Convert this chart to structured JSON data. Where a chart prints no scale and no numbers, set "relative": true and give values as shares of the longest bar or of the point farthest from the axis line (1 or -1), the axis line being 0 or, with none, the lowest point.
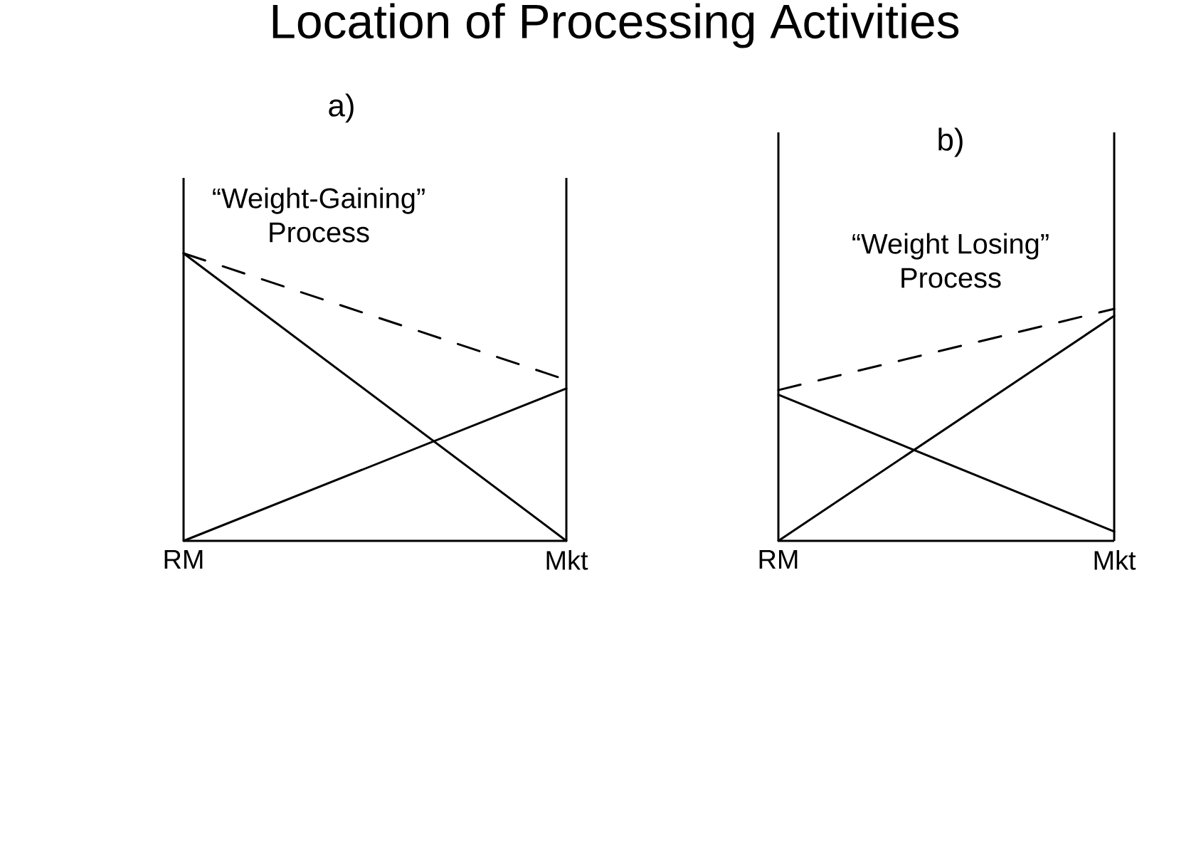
{
  "chart_data": [
    {
      "type": "line",
      "title": "Location of Processing Activities",
      "subtitle": "a)",
      "annotations": [
        "“Weight-Gaining” Process"
      ],
      "categories": [
        "RM",
        "Mkt"
      ],
      "relative": true,
      "tick_labels": "x",
      "marker": "none",
      "series": [
        {
          "color": "#000000",
          "line_style": "solid",
          "values": [
            1,
            0
          ]
        },
        {
          "color": "#000000",
          "line_style": "solid",
          "values": [
            0,
            0.53
          ]
        },
        {
          "color": "#000000",
          "line_style": "dashed",
          "values": [
            1,
            0.56
          ]
        }
      ]
    },
    {
      "type": "line",
      "subtitle": "b)",
      "annotations": [
        "“Weight Losing” Process"
      ],
      "categories": [
        "RM",
        "Mkt"
      ],
      "relative": true,
      "tick_labels": "x",
      "marker": "none",
      "series": [
        {
          "color": "#000000",
          "line_style": "solid",
          "values": [
            0.63,
            0.04
          ]
        },
        {
          "color": "#000000",
          "line_style": "solid",
          "values": [
            0,
            0.97
          ]
        },
        {
          "color": "#000000",
          "line_style": "dashed",
          "values": [
            0.65,
            1
          ]
        }
      ]
    }
  ]
}
